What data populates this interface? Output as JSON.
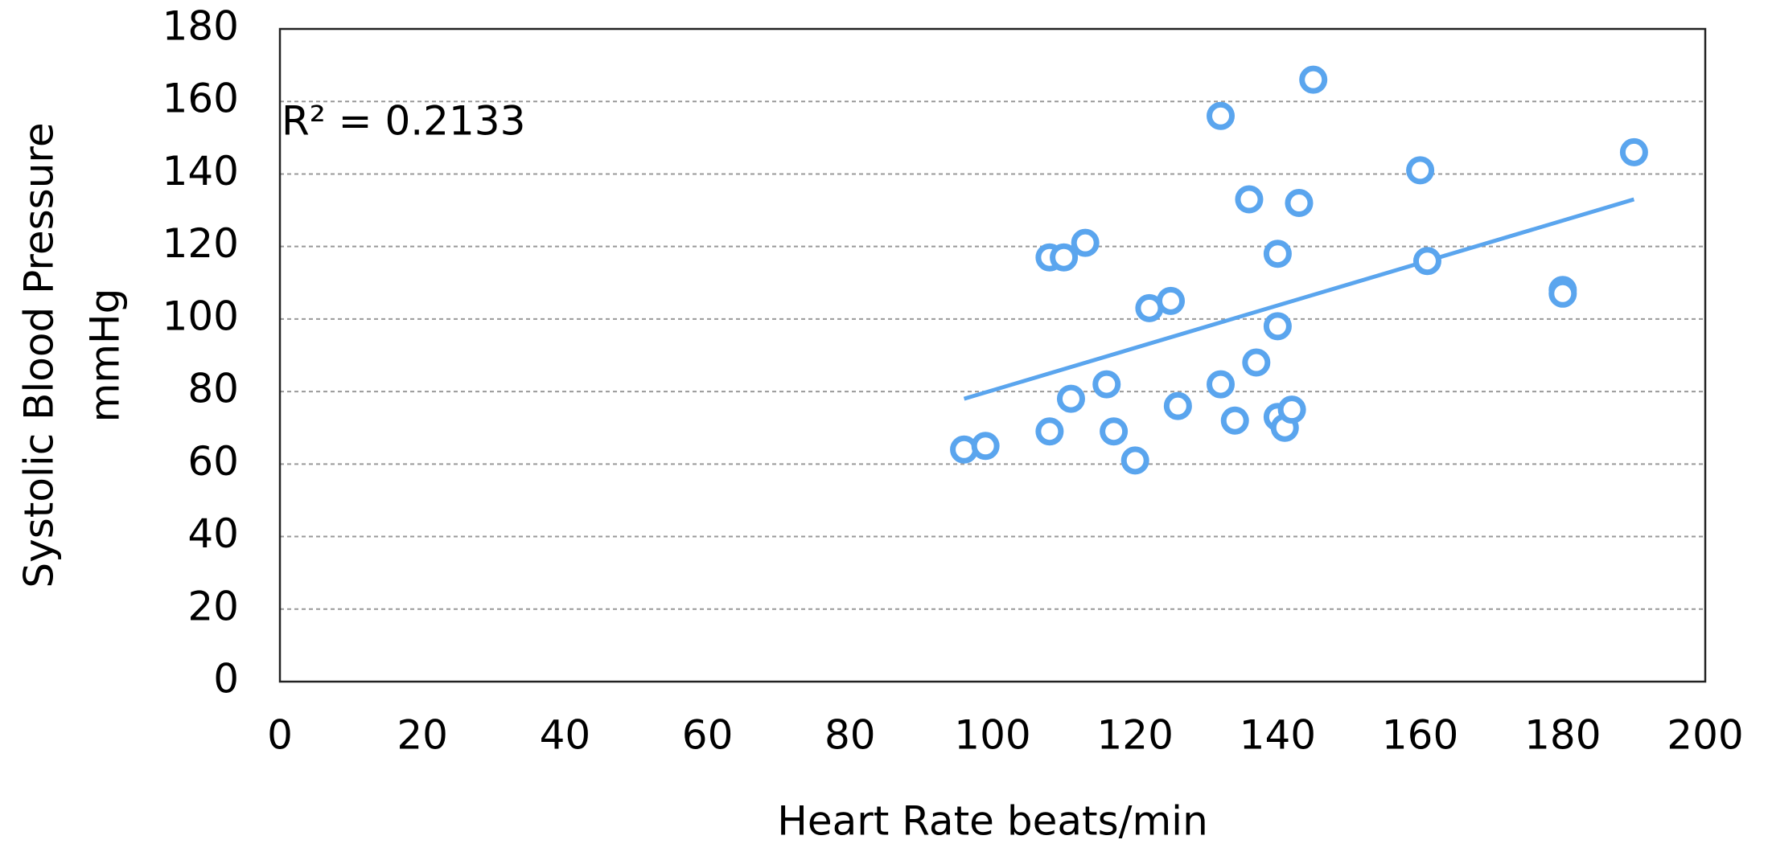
{
  "chart_data": {
    "type": "scatter",
    "xlabel": "Heart Rate beats/min",
    "ylabel": [
      "Systolic Blood Pressure",
      "mmHg"
    ],
    "annotation": "R² = 0.2133",
    "color": "#5aa5ee",
    "grid": true,
    "xlim": [
      0,
      200
    ],
    "xticks": [
      0,
      20,
      40,
      60,
      80,
      100,
      120,
      140,
      160,
      180,
      200
    ],
    "ylim": [
      0,
      180
    ],
    "yticks": [
      0,
      20,
      40,
      60,
      80,
      100,
      120,
      140,
      160,
      180
    ],
    "x": [
      96,
      99,
      108,
      110,
      113,
      108,
      111,
      116,
      117,
      120,
      122,
      125,
      126,
      132,
      132,
      134,
      136,
      137,
      140,
      140,
      140,
      141,
      142,
      143,
      145,
      160,
      161,
      180,
      180,
      190
    ],
    "values": [
      64,
      65,
      117,
      117,
      121,
      69,
      78,
      82,
      69,
      61,
      103,
      105,
      76,
      156,
      82,
      72,
      133,
      88,
      118,
      98,
      73,
      70,
      75,
      132,
      166,
      141,
      116,
      108,
      107,
      146
    ],
    "trendline": {
      "x": [
        96,
        190
      ],
      "y": [
        78,
        133
      ]
    }
  }
}
